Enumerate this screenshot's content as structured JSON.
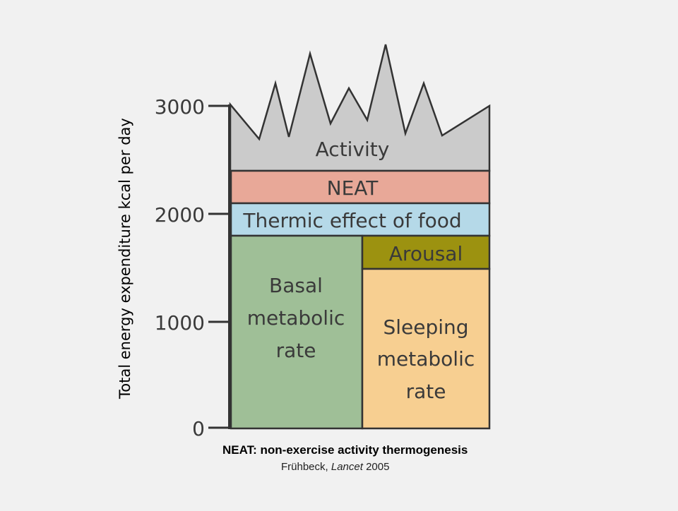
{
  "diagram": {
    "y_axis": {
      "label": "Total energy expenditure kcal per day",
      "ticks": [
        "3000",
        "2000",
        "1000",
        "0"
      ]
    },
    "blocks": {
      "activity": {
        "label": "Activity",
        "color": "#cbcbcb"
      },
      "neat": {
        "label": "NEAT",
        "color": "#e8a898"
      },
      "thermic": {
        "label": "Thermic effect of food",
        "color": "#b5d9e8"
      },
      "basal": {
        "lines": [
          "Basal",
          "metabolic",
          "rate"
        ],
        "color": "#9fbf97"
      },
      "arousal": {
        "label": "Arousal",
        "color": "#9c9210"
      },
      "sleeping": {
        "lines": [
          "Sleeping",
          "metabolic",
          "rate"
        ],
        "color": "#f7cf91"
      }
    }
  },
  "caption": {
    "title": "NEAT: non-exercise activity thermogenesis",
    "author": "Frühbeck, ",
    "journal": "Lancet",
    "year": " 2005"
  }
}
